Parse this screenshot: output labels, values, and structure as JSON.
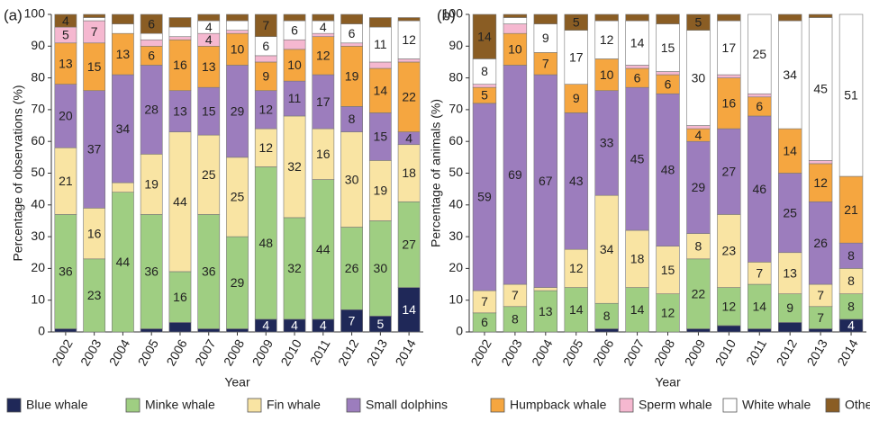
{
  "chart_data": [
    {
      "type": "stacked_bar",
      "panel_label": "(a)",
      "y_label": "Percentage of observations (%)",
      "x_label": "Year",
      "categories": [
        "2002",
        "2003",
        "2004",
        "2005",
        "2006",
        "2007",
        "2008",
        "2009",
        "2010",
        "2011",
        "2012",
        "2013",
        "2014"
      ],
      "ylim": [
        0,
        100
      ],
      "yticks": [
        0,
        10,
        20,
        30,
        40,
        50,
        60,
        70,
        80,
        90,
        100
      ],
      "series": [
        {
          "name": "Blue whale",
          "color": "#1f2858",
          "values": [
            1,
            0,
            0,
            1,
            3,
            1,
            1,
            4,
            4,
            4,
            7,
            5,
            14
          ]
        },
        {
          "name": "Minke whale",
          "color": "#9fce82",
          "values": [
            36,
            23,
            44,
            36,
            16,
            36,
            29,
            48,
            32,
            44,
            26,
            30,
            27
          ]
        },
        {
          "name": "Fin whale",
          "color": "#f9e4a3",
          "values": [
            21,
            16,
            3,
            19,
            44,
            25,
            25,
            12,
            32,
            16,
            30,
            19,
            18
          ]
        },
        {
          "name": "Small dolphins",
          "color": "#9c7dbd",
          "values": [
            20,
            37,
            34,
            28,
            13,
            15,
            29,
            12,
            11,
            17,
            8,
            15,
            4
          ]
        },
        {
          "name": "Humpback whale",
          "color": "#f5a640",
          "values": [
            13,
            15,
            13,
            6,
            16,
            13,
            10,
            9,
            10,
            12,
            19,
            14,
            22
          ]
        },
        {
          "name": "Sperm whale",
          "color": "#f5b8d0",
          "values": [
            5,
            7,
            0,
            2,
            1,
            4,
            1,
            2,
            3,
            1,
            1,
            2,
            1
          ]
        },
        {
          "name": "White whale",
          "color": "#ffffff",
          "values": [
            0,
            1,
            3,
            2,
            3,
            4,
            3,
            6,
            6,
            4,
            6,
            11,
            12
          ]
        },
        {
          "name": "Other",
          "color": "#8a5d24",
          "values": [
            4,
            1,
            3,
            6,
            3,
            2,
            2,
            7,
            2,
            2,
            3,
            3,
            1
          ]
        }
      ]
    },
    {
      "type": "stacked_bar",
      "panel_label": "(b)",
      "y_label": "Percentage of animals (%)",
      "x_label": "Year",
      "categories": [
        "2002",
        "2003",
        "2004",
        "2005",
        "2006",
        "2007",
        "2008",
        "2009",
        "2010",
        "2011",
        "2012",
        "2013",
        "2014"
      ],
      "ylim": [
        0,
        100
      ],
      "yticks": [
        0,
        10,
        20,
        30,
        40,
        50,
        60,
        70,
        80,
        90,
        100
      ],
      "series": [
        {
          "values": [
            0,
            0,
            0,
            0,
            1,
            0,
            0,
            1,
            2,
            1,
            3,
            1,
            4
          ]
        },
        {
          "values": [
            6,
            8,
            13,
            14,
            8,
            14,
            12,
            22,
            12,
            14,
            9,
            7,
            8
          ]
        },
        {
          "values": [
            7,
            7,
            1,
            12,
            34,
            18,
            15,
            8,
            23,
            7,
            13,
            7,
            8
          ]
        },
        {
          "values": [
            59,
            69,
            67,
            43,
            33,
            45,
            48,
            29,
            27,
            46,
            25,
            26,
            8
          ]
        },
        {
          "values": [
            5,
            10,
            7,
            9,
            10,
            6,
            6,
            4,
            16,
            6,
            14,
            12,
            21
          ]
        },
        {
          "values": [
            1,
            3,
            0,
            0,
            0,
            1,
            1,
            1,
            1,
            1,
            0,
            1,
            0
          ]
        },
        {
          "values": [
            8,
            2,
            9,
            17,
            12,
            14,
            15,
            30,
            17,
            25,
            34,
            45,
            51
          ]
        },
        {
          "values": [
            14,
            1,
            3,
            5,
            2,
            2,
            3,
            5,
            2,
            0,
            2,
            1,
            0
          ]
        }
      ]
    }
  ]
}
